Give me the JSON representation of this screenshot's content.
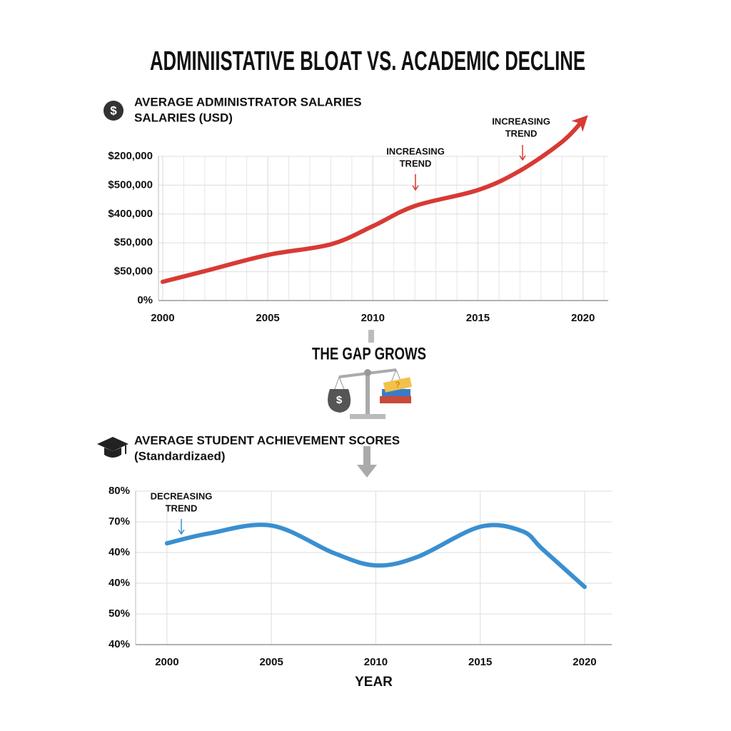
{
  "title": "ADMINIISTATIVE BLOAT VS. ACADEMIC DECLINE",
  "middle_text": "THE GAP GROWS",
  "chart_data": [
    {
      "type": "line",
      "subtitle": [
        "AVERAGE ADMINISTRATOR SALARIES",
        "SALARIES (USD)"
      ],
      "x": [
        2000,
        2002,
        2005,
        2008,
        2010,
        2012,
        2015,
        2017,
        2019,
        2020
      ],
      "series": [
        {
          "name": "Average Administrator Salaries",
          "color": "#d83a34",
          "values": [
            0.65,
            1.02,
            1.58,
            1.95,
            2.58,
            3.28,
            3.83,
            4.5,
            5.5,
            6.25
          ]
        }
      ],
      "xlim": [
        1999.8,
        2021.2
      ],
      "xticks": [
        2000,
        2005,
        2010,
        2015,
        2020
      ],
      "ylim": [
        0,
        5
      ],
      "yticks": [
        {
          "value": 0,
          "label": "0%"
        },
        {
          "value": 1,
          "label": "$50,000"
        },
        {
          "value": 2,
          "label": "$50,000"
        },
        {
          "value": 3,
          "label": "$400,000"
        },
        {
          "value": 4,
          "label": "$500,000"
        },
        {
          "value": 5,
          "label": "$200,000"
        }
      ],
      "grid": true,
      "annotations": [
        [
          "INCREASING",
          "TREND"
        ],
        [
          "INCREASING",
          "TREND"
        ]
      ]
    },
    {
      "type": "line",
      "subtitle": [
        "AVERAGE STUDENT ACHIEVEMENT SCORES",
        "(Standardizaed)"
      ],
      "x": [
        2000,
        2002,
        2005,
        2008,
        2010,
        2012,
        2015,
        2017,
        2018,
        2020
      ],
      "series": [
        {
          "name": "Average Student Achievement Scores",
          "color": "#3a8fd0",
          "values": [
            3.3,
            3.62,
            3.88,
            2.98,
            2.58,
            2.86,
            3.84,
            3.7,
            3.1,
            1.88
          ]
        }
      ],
      "xlim": [
        1998.5,
        2021.3
      ],
      "xticks": [
        2000,
        2005,
        2010,
        2015,
        2020
      ],
      "ylim": [
        0,
        5
      ],
      "yticks": [
        {
          "value": 0,
          "label": "40%"
        },
        {
          "value": 1,
          "label": "50%"
        },
        {
          "value": 2,
          "label": "40%"
        },
        {
          "value": 3,
          "label": "40%"
        },
        {
          "value": 4,
          "label": "70%"
        },
        {
          "value": 5,
          "label": "80%"
        }
      ],
      "xlabel": "YEAR",
      "grid": true,
      "annotations": [
        [
          "DECREASING",
          "TREND"
        ]
      ]
    }
  ]
}
